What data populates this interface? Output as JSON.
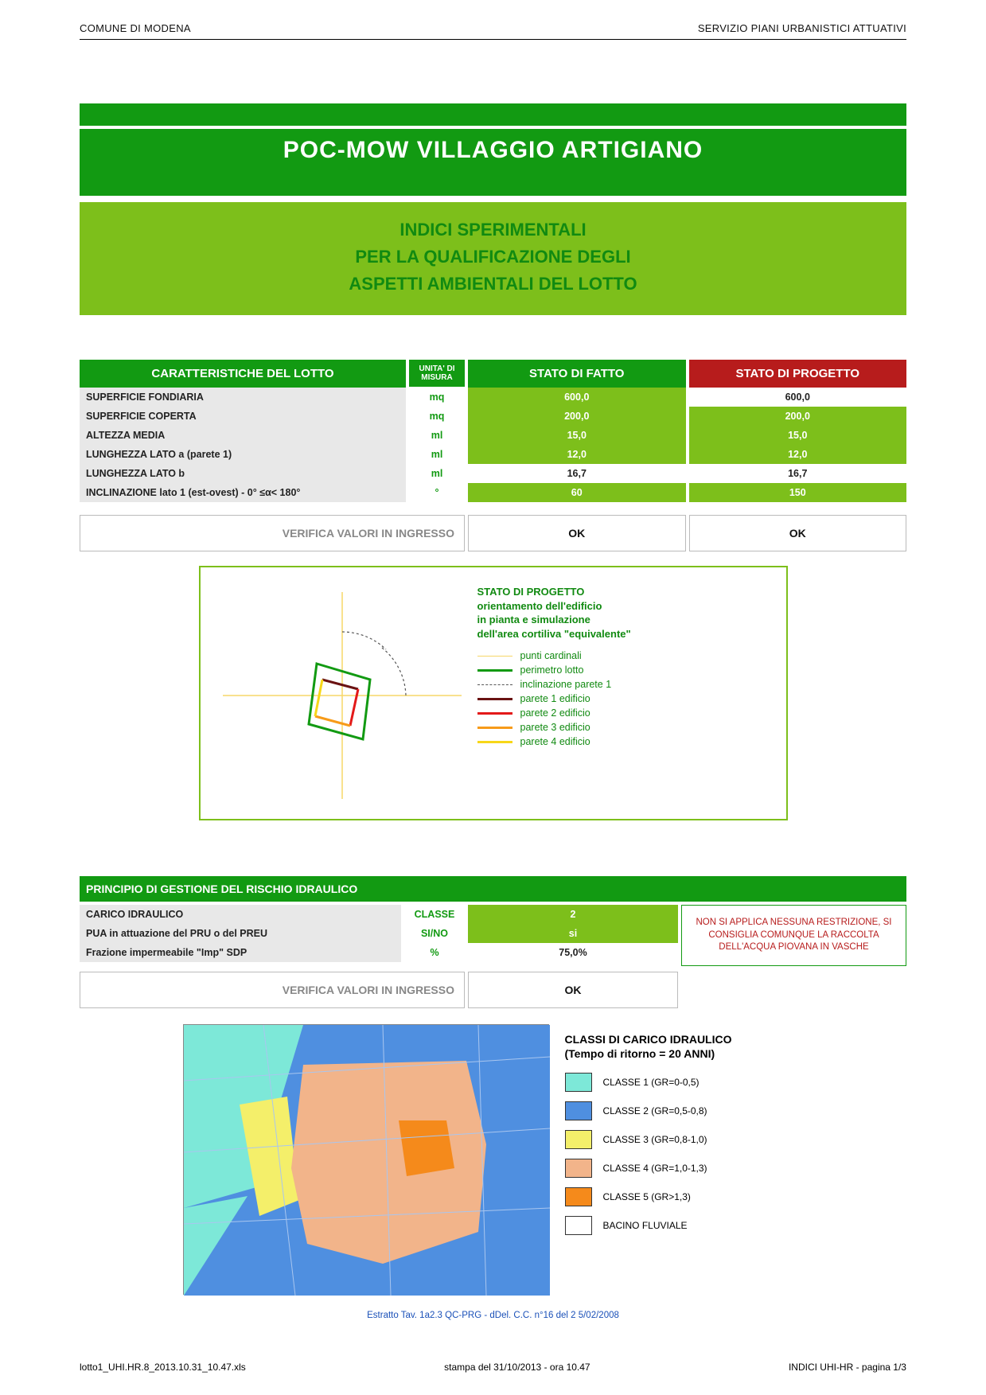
{
  "header": {
    "left": "COMUNE DI MODENA",
    "right": "SERVIZIO PIANI URBANISTICI ATTUATIVI"
  },
  "banner": {
    "title": "POC-MOW  VILLAGGIO ARTIGIANO",
    "sub1": "INDICI SPERIMENTALI",
    "sub2": "PER LA QUALIFICAZIONE DEGLI",
    "sub3": "ASPETTI AMBIENTALI DEL LOTTO"
  },
  "table1": {
    "headers": {
      "c1": "CARATTERISTICHE DEL LOTTO",
      "c2": "UNITA' DI MISURA",
      "c3": "STATO DI FATTO",
      "c4": "STATO DI PROGETTO"
    },
    "rows": [
      {
        "label": "SUPERFICIE FONDIARIA",
        "unit": "mq",
        "v1": "600,0",
        "v1_bg": "#7dbf1b",
        "v2": "600,0",
        "v2_bg": ""
      },
      {
        "label": "SUPERFICIE COPERTA",
        "unit": "mq",
        "v1": "200,0",
        "v1_bg": "#7dbf1b",
        "v2": "200,0",
        "v2_bg": "#7dbf1b"
      },
      {
        "label": "ALTEZZA MEDIA",
        "unit": "ml",
        "v1": "15,0",
        "v1_bg": "#7dbf1b",
        "v2": "15,0",
        "v2_bg": "#7dbf1b"
      },
      {
        "label": "LUNGHEZZA LATO a (parete 1)",
        "unit": "ml",
        "v1": "12,0",
        "v1_bg": "#7dbf1b",
        "v2": "12,0",
        "v2_bg": "#7dbf1b"
      },
      {
        "label": "LUNGHEZZA LATO b",
        "unit": "ml",
        "v1": "16,7",
        "v1_bg": "",
        "v2": "16,7",
        "v2_bg": ""
      },
      {
        "label": "INCLINAZIONE lato 1 (est-ovest) - 0° ≤α< 180°",
        "unit": "°",
        "v1": "60",
        "v1_bg": "#7dbf1b",
        "v2": "150",
        "v2_bg": "#7dbf1b"
      }
    ],
    "verify_label": "VERIFICA VALORI IN INGRESSO",
    "verify_v1": "OK",
    "verify_v2": "OK"
  },
  "diagram": {
    "title_l1": "STATO DI PROGETTO",
    "title_l2": "orientamento dell'edificio",
    "title_l3": "in pianta e simulazione",
    "title_l4": "dell'area cortiliva \"equivalente\"",
    "legend": [
      {
        "label": "punti cardinali",
        "color": "#f7d768",
        "style": "thin"
      },
      {
        "label": "perimetro lotto",
        "color": "#129a12",
        "style": "thick"
      },
      {
        "label": "inclinazione parete 1",
        "color": "#555",
        "style": "dash"
      },
      {
        "label": "parete 1 edificio",
        "color": "#6a1212",
        "style": "thick"
      },
      {
        "label": "parete 2 edificio",
        "color": "#e31919",
        "style": "thick"
      },
      {
        "label": "parete 3 edificio",
        "color": "#f79b19",
        "style": "thick"
      },
      {
        "label": "parete 4 edificio",
        "color": "#f7d719",
        "style": "thick"
      }
    ]
  },
  "table2": {
    "title": "PRINCIPIO DI GESTIONE DEL RISCHIO IDRAULICO",
    "rows": [
      {
        "label": "CARICO IDRAULICO",
        "unit": "CLASSE",
        "val": "2",
        "bg": "#7dbf1b"
      },
      {
        "label": "PUA in attuazione del PRU o del PREU",
        "unit": "SI/NO",
        "val": "si",
        "bg": "#7dbf1b"
      },
      {
        "label": "Frazione impermeabile \"Imp\" SDP",
        "unit": "%",
        "val": "75,0%",
        "bg": ""
      }
    ],
    "verify_label": "VERIFICA VALORI IN INGRESSO",
    "verify_val": "OK",
    "advice": "NON SI APPLICA NESSUNA RESTRIZIONE, SI CONSIGLIA COMUNQUE LA RACCOLTA DELL'ACQUA PIOVANA IN VASCHE"
  },
  "map": {
    "title_l1": "CLASSI DI CARICO IDRAULICO",
    "title_l2": "(Tempo di ritorno = 20 ANNI)",
    "classes": [
      {
        "label": "CLASSE 1   (GR=0-0,5)",
        "color": "#7de8d8"
      },
      {
        "label": "CLASSE 2   (GR=0,5-0,8)",
        "color": "#4f8fe0"
      },
      {
        "label": "CLASSE 3   (GR=0,8-1,0)",
        "color": "#f4ef6a"
      },
      {
        "label": "CLASSE 4   (GR=1,0-1,3)",
        "color": "#f2b48a"
      },
      {
        "label": "CLASSE 5   (GR>1,3)",
        "color": "#f58a1b"
      },
      {
        "label": "BACINO FLUVIALE",
        "color": "#ffffff"
      }
    ],
    "caption": "Estratto Tav. 1a2.3 QC-PRG - dDel. C.C. n°16 del 2 5/02/2008"
  },
  "footer": {
    "left": "lotto1_UHI.HR.8_2013.10.31_10.47.xls",
    "mid": "stampa del 31/10/2013 - ora 10.47",
    "right": "INDICI UHI-HR - pagina 1/3"
  },
  "colors": {
    "green_dark": "#129a12",
    "green_light": "#7dbf1b",
    "red_dark": "#b71c1c"
  }
}
